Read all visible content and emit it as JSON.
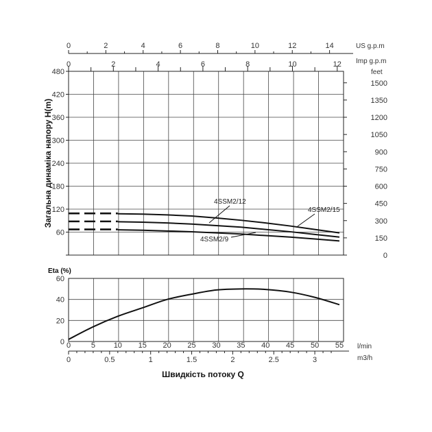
{
  "chart_data": [
    {
      "type": "line",
      "name": "head-chart",
      "ylabel": "Загальна динаміка напору H(m)",
      "ylim": [
        0,
        480
      ],
      "yticks": [
        0,
        60,
        120,
        180,
        240,
        300,
        360,
        420,
        480
      ],
      "ytick_labels": [
        "",
        "60",
        "120",
        "180",
        "240",
        "300",
        "360",
        "420",
        "480"
      ],
      "xlim_lmin": [
        0,
        55
      ],
      "top_axis_us": {
        "unit": "US g.p.m",
        "ticks": [
          0,
          2,
          4,
          6,
          8,
          10,
          12,
          14
        ]
      },
      "top_axis_imp": {
        "unit": "Imp g.p.m",
        "ticks": [
          0,
          2,
          4,
          6,
          8,
          10,
          12
        ]
      },
      "right_axis": {
        "unit": "feet",
        "ticks": [
          0,
          150,
          300,
          450,
          600,
          750,
          900,
          1050,
          1200,
          1350,
          1500
        ]
      },
      "grid": true,
      "series": [
        {
          "name": "4SSM2/12",
          "x": [
            10,
            15,
            20,
            25,
            30,
            35,
            40,
            45,
            50,
            55
          ],
          "y": [
            87,
            86,
            84,
            81,
            77,
            73,
            67,
            61,
            54,
            47
          ],
          "dashed_stub": {
            "x": [
              0,
              10
            ],
            "y": 88
          }
        },
        {
          "name": "4SSM2/15",
          "x": [
            10,
            15,
            20,
            25,
            30,
            35,
            40,
            45,
            50,
            55
          ],
          "y": [
            108,
            107,
            105,
            102,
            97,
            91,
            84,
            76,
            67,
            58
          ],
          "dashed_stub": {
            "x": [
              0,
              10
            ],
            "y": 109
          }
        },
        {
          "name": "4SSM2/9",
          "x": [
            10,
            15,
            20,
            25,
            30,
            35,
            40,
            45,
            50,
            55
          ],
          "y": [
            66,
            65,
            63,
            61,
            58,
            55,
            51,
            47,
            42,
            37
          ],
          "dashed_stub": {
            "x": [
              0,
              10
            ],
            "y": 67
          }
        }
      ],
      "annotations": [
        {
          "text": "4SSM2/12",
          "for": "4SSM2/12"
        },
        {
          "text": "4SSM2/15",
          "for": "4SSM2/15"
        },
        {
          "text": "4SSM2/9",
          "for": "4SSM2/9"
        }
      ]
    },
    {
      "type": "line",
      "name": "efficiency-chart",
      "ylabel": "Eta (%)",
      "ylim": [
        0,
        60
      ],
      "yticks": [
        0,
        20,
        40,
        60
      ],
      "ytick_labels": [
        "0",
        "20",
        "40",
        "60"
      ],
      "xlabel": "Швидкість потоку Q",
      "x_axis_lmin": {
        "unit": "l/min",
        "ticks": [
          0,
          5,
          10,
          15,
          20,
          25,
          30,
          35,
          40,
          45,
          50,
          55
        ]
      },
      "x_axis_m3h": {
        "unit": "m3/h",
        "ticks": [
          0,
          0.5,
          1,
          1.5,
          2,
          2.5,
          3
        ],
        "tick_labels": [
          "0",
          "0.5",
          "1",
          "1.5",
          "2",
          "2.5",
          "3"
        ]
      },
      "grid": true,
      "series": [
        {
          "name": "",
          "x": [
            0,
            5,
            10,
            15,
            20,
            25,
            30,
            35,
            40,
            45,
            50,
            55
          ],
          "y": [
            2,
            14,
            24,
            32,
            40,
            45,
            49,
            50,
            49.5,
            47,
            42,
            35
          ]
        }
      ]
    }
  ]
}
